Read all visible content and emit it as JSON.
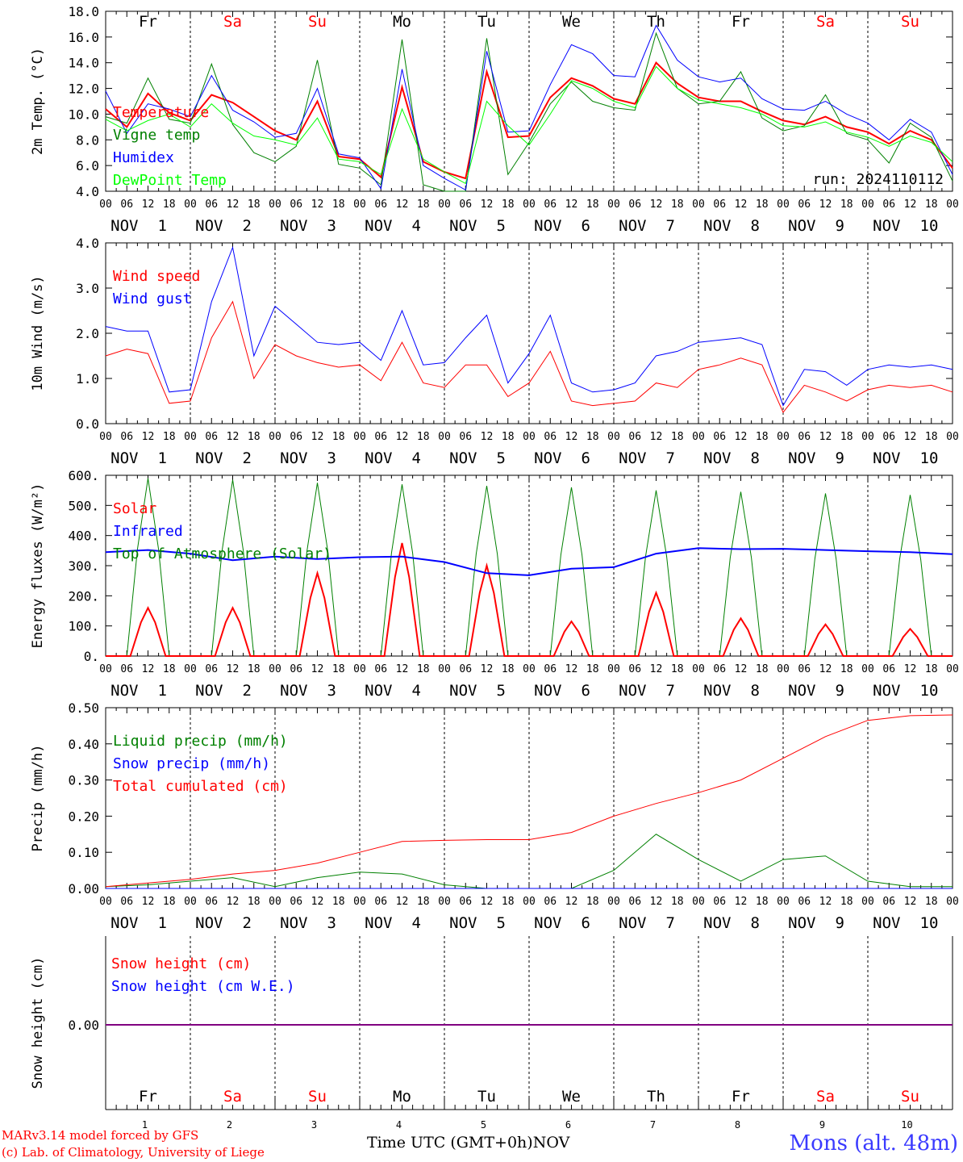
{
  "meta": {
    "station": "Mons (alt. 48m)",
    "credit_1": "MARv3.14 model forced by GFS",
    "credit_2": "(c) Lab. of Climatology, University of Liege",
    "time_axis_label": "Time UTC (GMT+0h)",
    "month_label": "NOV",
    "run_label": "run: 2024110112"
  },
  "colors": {
    "red": "#ff0000",
    "green": "#008000",
    "blue": "#0000ff",
    "lightgreen": "#00ff00",
    "purple": "#800080"
  },
  "days": [
    {
      "abbr": "Fr",
      "num": "1",
      "weekend": false
    },
    {
      "abbr": "Sa",
      "num": "2",
      "weekend": true
    },
    {
      "abbr": "Su",
      "num": "3",
      "weekend": true
    },
    {
      "abbr": "Mo",
      "num": "4",
      "weekend": false
    },
    {
      "abbr": "Tu",
      "num": "5",
      "weekend": false
    },
    {
      "abbr": "We",
      "num": "6",
      "weekend": false
    },
    {
      "abbr": "Th",
      "num": "7",
      "weekend": false
    },
    {
      "abbr": "Fr",
      "num": "8",
      "weekend": false
    },
    {
      "abbr": "Sa",
      "num": "9",
      "weekend": true
    },
    {
      "abbr": "Su",
      "num": "10",
      "weekend": true
    }
  ],
  "hour_ticks": [
    "00",
    "06",
    "12",
    "18"
  ],
  "chart_data": [
    {
      "type": "line",
      "ylabel": "2m Temp. (°C)",
      "ylim": [
        4,
        18
      ],
      "yticks": [
        4,
        6,
        8,
        10,
        12,
        14,
        16,
        18
      ],
      "ytick_labels": [
        "4.0",
        "6.0",
        "8.0",
        "10.0",
        "12.0",
        "14.0",
        "16.0",
        "18.0"
      ],
      "x_hours": [
        0,
        6,
        12,
        18,
        24,
        30,
        36,
        42,
        48,
        54,
        60,
        66,
        72,
        78,
        84,
        90,
        96,
        102,
        108,
        114,
        120,
        126,
        132,
        138,
        144,
        150,
        156,
        162,
        168,
        174,
        180,
        186,
        192,
        198,
        204,
        210,
        216,
        222,
        228,
        234,
        240
      ],
      "series": [
        {
          "name": "Temperature",
          "color": "red",
          "width": 2,
          "values": [
            10.4,
            9.0,
            11.6,
            10.1,
            9.5,
            11.5,
            10.9,
            9.8,
            8.7,
            8.0,
            11.0,
            6.7,
            6.5,
            5.1,
            12.1,
            6.3,
            5.5,
            5.0,
            13.3,
            8.2,
            8.3,
            11.3,
            12.8,
            12.2,
            11.2,
            10.8,
            14.0,
            12.4,
            11.3,
            11.0,
            11.0,
            10.2,
            9.5,
            9.2,
            9.8,
            9.0,
            8.6,
            7.7,
            8.7,
            8.0,
            5.8
          ]
        },
        {
          "name": "Vigne temp",
          "color": "green",
          "width": 1,
          "values": [
            9.8,
            9.3,
            12.8,
            9.6,
            9.3,
            13.9,
            9.2,
            7.0,
            6.3,
            7.5,
            14.2,
            6.1,
            5.8,
            4.5,
            15.8,
            4.5,
            4.0,
            3.8,
            15.9,
            5.3,
            7.8,
            10.8,
            12.5,
            11.0,
            10.5,
            10.3,
            16.3,
            12.0,
            10.8,
            11.0,
            13.3,
            9.7,
            8.7,
            9.1,
            11.5,
            8.5,
            8.0,
            6.2,
            9.3,
            8.2,
            4.8
          ]
        },
        {
          "name": "Humidex",
          "color": "blue",
          "width": 1,
          "values": [
            11.8,
            8.5,
            10.8,
            10.4,
            9.8,
            13.0,
            10.3,
            9.4,
            8.2,
            8.5,
            12.0,
            6.9,
            6.6,
            4.2,
            13.5,
            6.0,
            5.0,
            4.1,
            14.9,
            8.6,
            8.7,
            12.3,
            15.4,
            14.7,
            13.0,
            12.9,
            16.9,
            14.2,
            12.9,
            12.5,
            12.8,
            11.2,
            10.4,
            10.3,
            11.0,
            10.0,
            9.3,
            8.0,
            9.6,
            8.6,
            5.3
          ]
        },
        {
          "name": "DewPoint Temp",
          "color": "lightgreen",
          "width": 1,
          "values": [
            9.6,
            8.7,
            9.5,
            10.0,
            9.0,
            10.8,
            9.3,
            8.3,
            8.0,
            7.6,
            9.7,
            6.5,
            6.3,
            5.3,
            10.4,
            6.5,
            5.5,
            4.6,
            11.0,
            9.1,
            7.6,
            10.0,
            12.6,
            12.0,
            11.0,
            10.5,
            13.7,
            12.0,
            11.1,
            10.8,
            10.5,
            10.0,
            9.1,
            9.0,
            9.4,
            8.6,
            8.2,
            7.5,
            8.3,
            7.8,
            6.3
          ]
        }
      ],
      "annotation": "run: 2024110112"
    },
    {
      "type": "line",
      "ylabel": "10m Wind (m/s)",
      "ylim": [
        0,
        4
      ],
      "yticks": [
        0,
        1,
        2,
        3,
        4
      ],
      "ytick_labels": [
        "0.0",
        "1.0",
        "2.0",
        "3.0",
        "4.0"
      ],
      "x_hours": [
        0,
        6,
        12,
        18,
        24,
        30,
        36,
        42,
        48,
        54,
        60,
        66,
        72,
        78,
        84,
        90,
        96,
        102,
        108,
        114,
        120,
        126,
        132,
        138,
        144,
        150,
        156,
        162,
        168,
        174,
        180,
        186,
        192,
        198,
        204,
        210,
        216,
        222,
        228,
        234,
        240
      ],
      "series": [
        {
          "name": "Wind speed",
          "color": "red",
          "width": 1,
          "values": [
            1.5,
            1.65,
            1.55,
            0.45,
            0.5,
            1.9,
            2.7,
            1.0,
            1.75,
            1.5,
            1.35,
            1.25,
            1.3,
            0.95,
            1.8,
            0.9,
            0.8,
            1.3,
            1.3,
            0.6,
            0.9,
            1.6,
            0.5,
            0.4,
            0.45,
            0.5,
            0.9,
            0.8,
            1.2,
            1.3,
            1.45,
            1.3,
            0.25,
            0.85,
            0.7,
            0.5,
            0.75,
            0.85,
            0.8,
            0.85,
            0.7
          ]
        },
        {
          "name": "Wind gust",
          "color": "blue",
          "width": 1,
          "values": [
            2.15,
            2.05,
            2.05,
            0.7,
            0.75,
            2.7,
            3.9,
            1.5,
            2.6,
            2.2,
            1.8,
            1.75,
            1.8,
            1.4,
            2.5,
            1.3,
            1.35,
            1.9,
            2.4,
            0.9,
            1.55,
            2.4,
            0.9,
            0.7,
            0.75,
            0.9,
            1.5,
            1.6,
            1.8,
            1.85,
            1.9,
            1.75,
            0.4,
            1.2,
            1.15,
            0.85,
            1.2,
            1.3,
            1.25,
            1.3,
            1.2
          ]
        }
      ]
    },
    {
      "type": "line",
      "ylabel": "Energy fluxes (W/m²)",
      "ylim": [
        0,
        600
      ],
      "yticks": [
        0,
        100,
        200,
        300,
        400,
        500,
        600
      ],
      "ytick_labels": [
        "0.",
        "100.",
        "200.",
        "300.",
        "400.",
        "500.",
        "600."
      ],
      "x_hours": [
        0,
        12,
        24,
        36,
        48,
        60,
        72,
        84,
        96,
        108,
        120,
        132,
        144,
        156,
        168,
        180,
        192,
        204,
        216,
        228,
        240
      ],
      "series": [
        {
          "name": "Solar",
          "color": "red",
          "width": 2,
          "day_peaks": [
            160,
            160,
            275,
            375,
            300,
            115,
            210,
            125,
            105,
            90
          ]
        },
        {
          "name": "Infrared",
          "color": "blue",
          "width": 2,
          "values": [
            345,
            352,
            340,
            318,
            330,
            322,
            328,
            330,
            312,
            275,
            268,
            290,
            295,
            340,
            358,
            355,
            356,
            352,
            348,
            345,
            338
          ]
        },
        {
          "name": "Top of Atmosphere (Solar)",
          "color": "green",
          "width": 1,
          "day_peaks": [
            590,
            585,
            575,
            570,
            565,
            560,
            550,
            545,
            540,
            535
          ]
        }
      ]
    },
    {
      "type": "line",
      "ylabel": "Precip (mm/h)",
      "ylim": [
        0,
        0.5
      ],
      "yticks": [
        0,
        0.1,
        0.2,
        0.3,
        0.4,
        0.5
      ],
      "ytick_labels": [
        "0.00",
        "0.10",
        "0.20",
        "0.30",
        "0.40",
        "0.50"
      ],
      "x_hours": [
        0,
        12,
        24,
        36,
        48,
        60,
        72,
        84,
        96,
        108,
        120,
        132,
        144,
        156,
        168,
        180,
        192,
        204,
        216,
        228,
        240
      ],
      "series": [
        {
          "name": "Liquid precip (mm/h)",
          "color": "green",
          "width": 1,
          "values": [
            0.005,
            0.01,
            0.02,
            0.03,
            0.005,
            0.03,
            0.045,
            0.04,
            0.01,
            0.0,
            0.0,
            0.0,
            0.05,
            0.15,
            0.08,
            0.02,
            0.08,
            0.09,
            0.02,
            0.005,
            0.005
          ]
        },
        {
          "name": "Snow precip (mm/h)",
          "color": "blue",
          "width": 1,
          "values": [
            0,
            0,
            0,
            0,
            0,
            0,
            0,
            0,
            0,
            0,
            0,
            0,
            0,
            0,
            0,
            0,
            0,
            0,
            0,
            0,
            0
          ]
        },
        {
          "name": "Total cumulated (cm)",
          "color": "red",
          "width": 1,
          "values": [
            0.005,
            0.015,
            0.025,
            0.04,
            0.05,
            0.07,
            0.1,
            0.13,
            0.133,
            0.135,
            0.135,
            0.155,
            0.2,
            0.235,
            0.265,
            0.3,
            0.36,
            0.42,
            0.465,
            0.478,
            0.48
          ]
        }
      ]
    },
    {
      "type": "line",
      "ylabel": "Snow height (cm)",
      "yticks": [
        0
      ],
      "ytick_labels": [
        "0.00"
      ],
      "series": [
        {
          "name": "Snow height (cm)",
          "color": "red",
          "values": [
            0,
            0
          ]
        },
        {
          "name": "Snow height (cm W.E.)",
          "color": "blue",
          "values": [
            0,
            0
          ]
        }
      ]
    }
  ]
}
